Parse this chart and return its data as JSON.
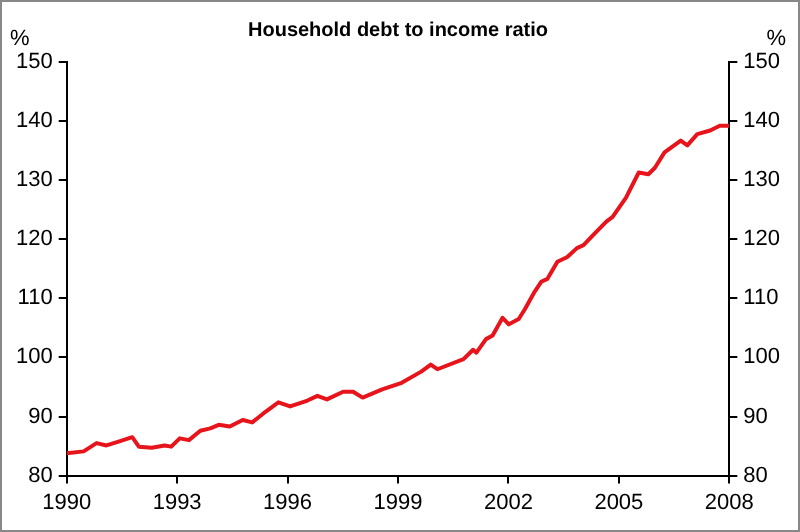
{
  "chart_data": {
    "type": "line",
    "title": "Household debt to income ratio",
    "ylabel": "%",
    "y2label": "%",
    "x": [
      1990.0,
      1990.46,
      1990.81,
      1991.08,
      1991.43,
      1991.78,
      1991.96,
      1992.31,
      1992.66,
      1992.84,
      1993.07,
      1993.32,
      1993.63,
      1993.9,
      1994.13,
      1994.43,
      1994.78,
      1995.04,
      1995.4,
      1995.75,
      1996.07,
      1996.54,
      1996.81,
      1997.07,
      1997.51,
      1997.78,
      1998.04,
      1998.57,
      1999.1,
      1999.63,
      1999.89,
      2000.07,
      2000.78,
      2001.04,
      2001.13,
      2001.39,
      2001.57,
      2001.84,
      2002.01,
      2002.28,
      2002.45,
      2002.71,
      2002.89,
      2003.06,
      2003.33,
      2003.6,
      2003.86,
      2004.04,
      2004.3,
      2004.66,
      2004.83,
      2005.19,
      2005.54,
      2005.8,
      2005.98,
      2006.24,
      2006.68,
      2006.86,
      2007.13,
      2007.48,
      2007.74,
      2008.0
    ],
    "series": [
      {
        "color": "#e8141c",
        "values": [
          83.8,
          84.1,
          85.5,
          85.1,
          85.8,
          86.5,
          84.9,
          84.7,
          85.1,
          84.9,
          86.3,
          86.0,
          87.6,
          88.0,
          88.6,
          88.3,
          89.4,
          89.0,
          90.8,
          92.4,
          91.7,
          92.7,
          93.5,
          92.9,
          94.2,
          94.2,
          93.2,
          94.6,
          95.7,
          97.6,
          98.8,
          98.0,
          99.7,
          101.3,
          100.8,
          103.1,
          103.7,
          106.7,
          105.6,
          106.5,
          108.2,
          111.1,
          112.8,
          113.3,
          116.2,
          117.0,
          118.5,
          119.0,
          120.7,
          123.0,
          123.8,
          127.0,
          131.3,
          131.0,
          132.1,
          134.7,
          136.7,
          135.9,
          137.8,
          138.4,
          139.2,
          139.2
        ]
      }
    ],
    "xlim": [
      1990,
      2008
    ],
    "xticks": [
      1990,
      1993,
      1996,
      1999,
      2002,
      2005,
      2008
    ],
    "ylim": [
      80,
      150
    ],
    "yticks": [
      80,
      90,
      100,
      110,
      120,
      130,
      140,
      150
    ],
    "y2lim": [
      80,
      150
    ],
    "y2ticks": [
      80,
      90,
      100,
      110,
      120,
      130,
      140,
      150
    ],
    "grid": false,
    "legend": false,
    "marker": "none",
    "line_style": "solid"
  }
}
